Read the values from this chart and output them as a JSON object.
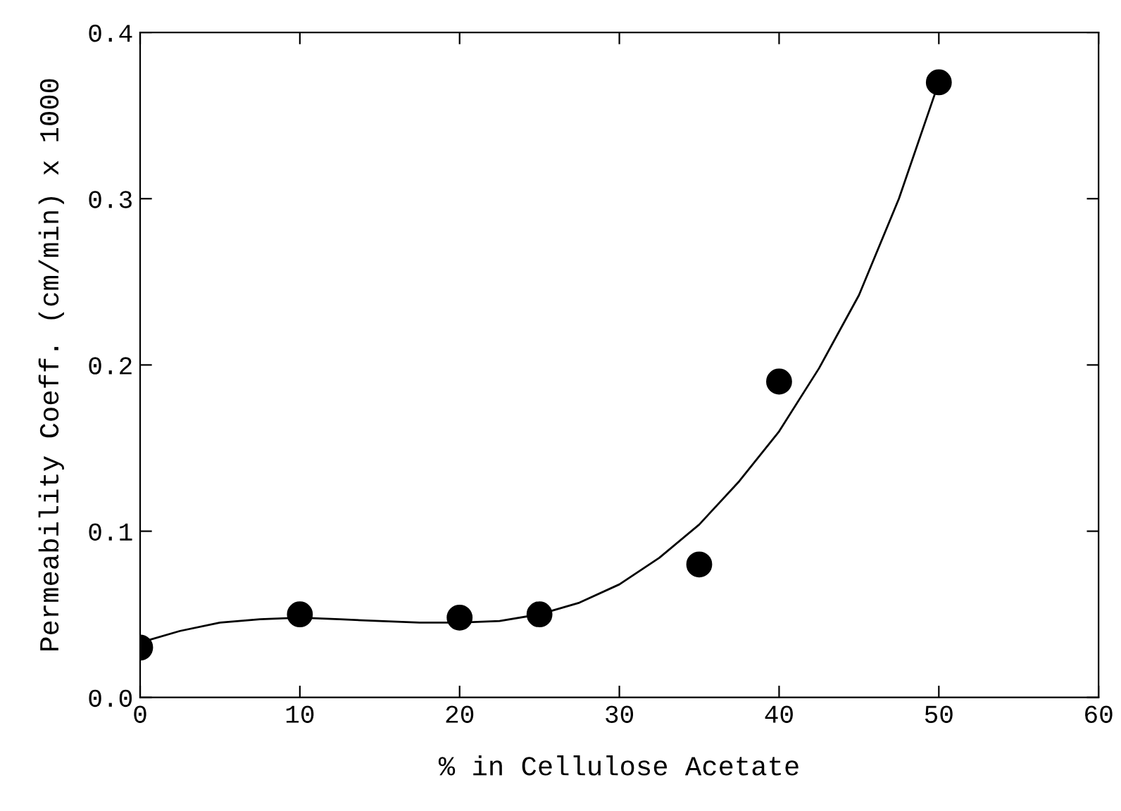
{
  "chart_data": {
    "type": "scatter",
    "xlabel": "% in Cellulose Acetate",
    "ylabel": "Permeability Coeff. (cm/min) x 1000",
    "xlim": [
      0,
      60
    ],
    "xticks": [
      0,
      10,
      20,
      30,
      40,
      50,
      60
    ],
    "ylim": [
      0,
      0.4
    ],
    "yticks": [
      {
        "value": 0,
        "label": "0.0"
      },
      {
        "value": 0.1,
        "label": "0.1"
      },
      {
        "value": 0.2,
        "label": "0.2"
      },
      {
        "value": 0.3,
        "label": "0.3"
      },
      {
        "value": 0.4,
        "label": "0.4"
      }
    ],
    "grid": false,
    "marker": "circle",
    "series": [
      {
        "color": "#000000",
        "x": [
          0,
          10,
          20,
          25,
          35,
          40,
          50
        ],
        "values": [
          0.03,
          0.05,
          0.048,
          0.05,
          0.08,
          0.19,
          0.37
        ]
      },
      {
        "type": "line",
        "color": "#000000",
        "line_style": "solid",
        "marker": "none",
        "x": [
          0,
          2.5,
          5,
          7.5,
          10,
          12.5,
          15,
          17.5,
          20,
          22.5,
          25,
          27.5,
          30,
          32.5,
          35,
          37.5,
          40,
          42.5,
          45,
          47.5,
          50
        ],
        "values": [
          0.033,
          0.04,
          0.045,
          0.047,
          0.048,
          0.047,
          0.046,
          0.045,
          0.045,
          0.046,
          0.05,
          0.057,
          0.068,
          0.084,
          0.104,
          0.13,
          0.16,
          0.198,
          0.242,
          0.3,
          0.37
        ]
      }
    ]
  }
}
